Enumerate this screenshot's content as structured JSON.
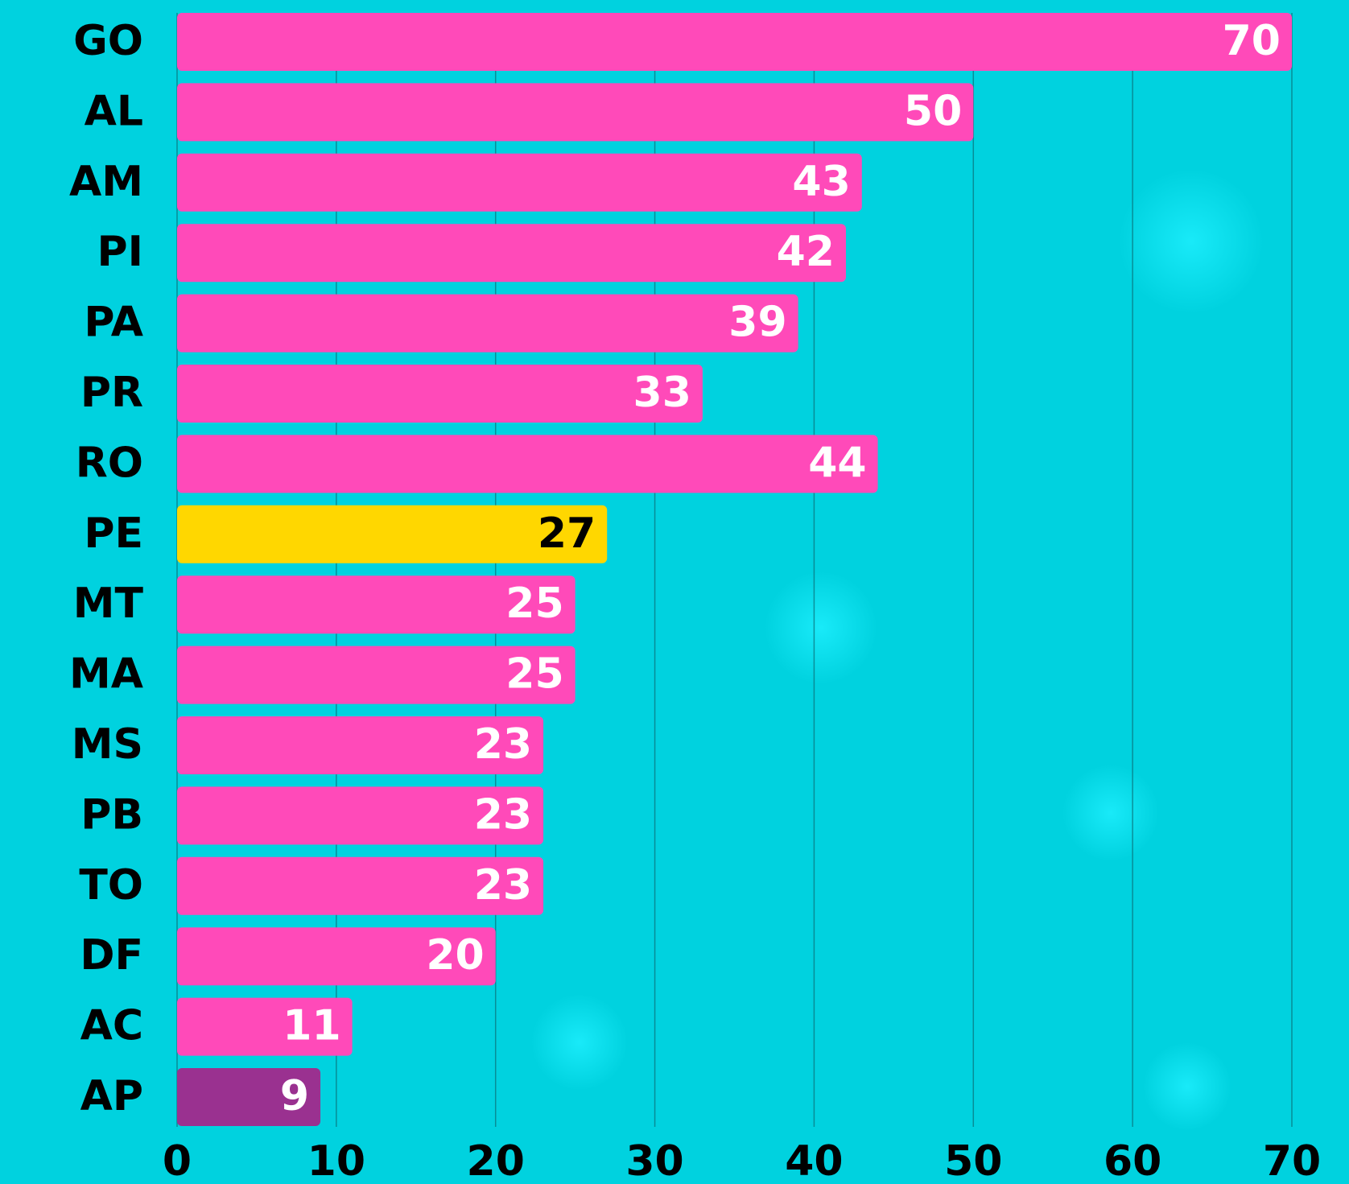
{
  "chart_data": {
    "type": "bar",
    "orientation": "horizontal",
    "categories": [
      "GO",
      "AL",
      "AM",
      "PI",
      "PA",
      "PR",
      "RO",
      "PE",
      "MT",
      "MA",
      "MS",
      "PB",
      "TO",
      "DF",
      "AC",
      "AP"
    ],
    "values": [
      70,
      50,
      43,
      42,
      39,
      33,
      44,
      27,
      25,
      25,
      23,
      23,
      23,
      20,
      11,
      9
    ],
    "colors": [
      "#ff4ab9",
      "#ff4ab9",
      "#ff4ab9",
      "#ff4ab9",
      "#ff4ab9",
      "#ff4ab9",
      "#ff4ab9",
      "#ffd700",
      "#ff4ab9",
      "#ff4ab9",
      "#ff4ab9",
      "#ff4ab9",
      "#ff4ab9",
      "#ff4ab9",
      "#ff4ab9",
      "#9a3190"
    ],
    "value_label_colors": [
      "#ffffff",
      "#ffffff",
      "#ffffff",
      "#ffffff",
      "#ffffff",
      "#ffffff",
      "#ffffff",
      "#000000",
      "#ffffff",
      "#ffffff",
      "#ffffff",
      "#ffffff",
      "#ffffff",
      "#ffffff",
      "#ffffff",
      "#ffffff"
    ],
    "xlim": [
      0,
      70
    ],
    "xticks": [
      0,
      10,
      20,
      30,
      40,
      50,
      60,
      70
    ],
    "grid": true
  }
}
